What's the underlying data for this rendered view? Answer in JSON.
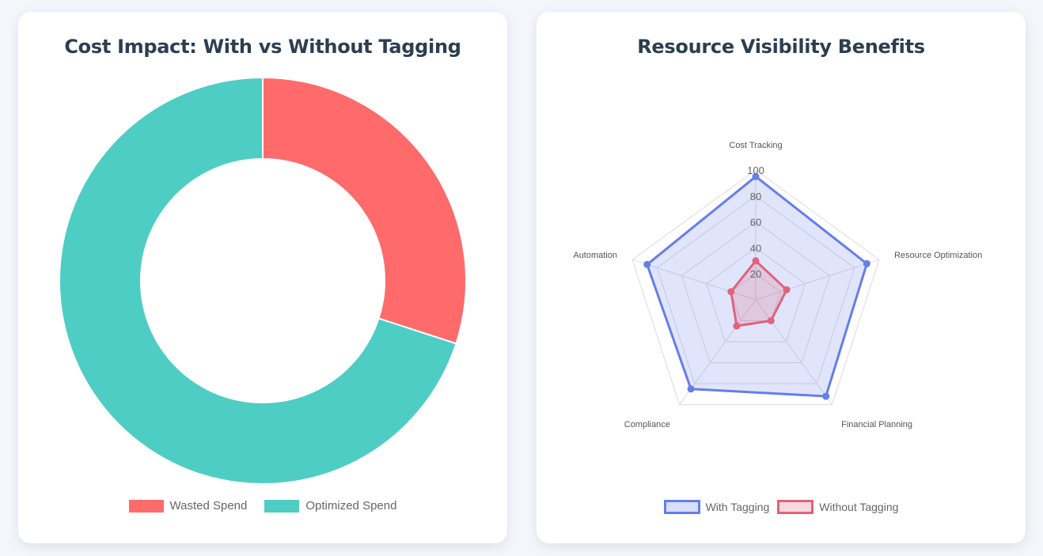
{
  "left_card": {
    "title": "Cost Impact: With vs Without Tagging"
  },
  "right_card": {
    "title": "Resource Visibility Benefits"
  },
  "colors": {
    "wasted": "#ff6b6b",
    "optimized": "#4ecdc4",
    "with_tagging": "#667eea",
    "without_tagging": "#e0637a",
    "title": "#2c3e50",
    "background": "#f5f6fb"
  },
  "chart_data": [
    {
      "type": "pie",
      "variant": "doughnut",
      "title": "Cost Impact: With vs Without Tagging",
      "labels": [
        "Wasted Spend",
        "Optimized Spend"
      ],
      "values": [
        30,
        70
      ],
      "colors": [
        "#ff6b6b",
        "#4ecdc4"
      ],
      "legend_position": "bottom"
    },
    {
      "type": "radar",
      "title": "Resource Visibility Benefits",
      "categories": [
        "Cost Tracking",
        "Resource Optimization",
        "Financial Planning",
        "Compliance",
        "Automation"
      ],
      "r_range": [
        0,
        100
      ],
      "r_ticks": [
        "20",
        "40",
        "60",
        "80",
        "100"
      ],
      "series": [
        {
          "name": "With Tagging",
          "values": [
            95,
            90,
            92,
            85,
            88
          ],
          "color": "#667eea"
        },
        {
          "name": "Without Tagging",
          "values": [
            30,
            25,
            20,
            25,
            20
          ],
          "color": "#e0637a"
        }
      ],
      "grid": true,
      "legend_position": "bottom"
    }
  ]
}
